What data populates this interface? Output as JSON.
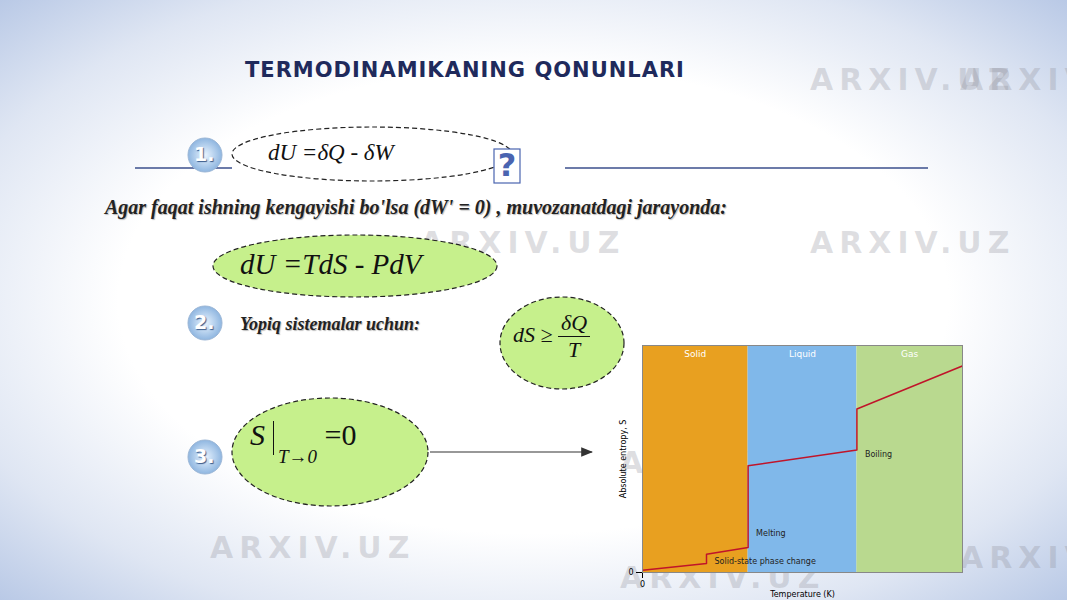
{
  "watermark": "ARXIV.UZ",
  "title": "TERMODINAMIKANING QONUNLARI",
  "question_mark": "?",
  "law1": {
    "number": "1.",
    "formula": "dU =δQ - δW"
  },
  "note": "Agar faqat ishning kengayishi bo'lsa (dW' = 0) , muvozanatdagi jarayonda:",
  "law1_equilibrium": "dU =TdS - PdV",
  "law2": {
    "number": "2.",
    "text": "Yopiq sistemalar uchun:",
    "lhs": "dS ≥",
    "numerator": "δQ",
    "denominator": "T"
  },
  "law3": {
    "number": "3.",
    "symbol": "S",
    "subscript": "T→0",
    "rhs": "=0"
  },
  "chart_data": {
    "type": "line",
    "x_label": "Temperature (K)",
    "y_label": "Absolute entropy, S",
    "xlim": [
      0,
      100
    ],
    "ylim": [
      0,
      100
    ],
    "xticks": [
      0
    ],
    "yticks": [
      0
    ],
    "regions": [
      {
        "name": "Solid",
        "from": 0,
        "to": 33,
        "color": "#e8a020"
      },
      {
        "name": "Liquid",
        "from": 33,
        "to": 67,
        "color": "#80b8ea"
      },
      {
        "name": "Gas",
        "from": 67,
        "to": 100,
        "color": "#b9d98f"
      }
    ],
    "series": [
      {
        "name": "S",
        "color": "#c0142a",
        "x": [
          0,
          20,
          20,
          33,
          33,
          67,
          67,
          100
        ],
        "values": [
          1,
          4,
          8,
          11,
          47,
          54,
          72,
          91
        ]
      }
    ],
    "annotations": [
      {
        "text": "Melting",
        "x": 33,
        "y": 17
      },
      {
        "text": "Boiling",
        "x": 67,
        "y": 52
      },
      {
        "text": "Solid-state phase change",
        "x": 20,
        "y": 5
      }
    ]
  }
}
